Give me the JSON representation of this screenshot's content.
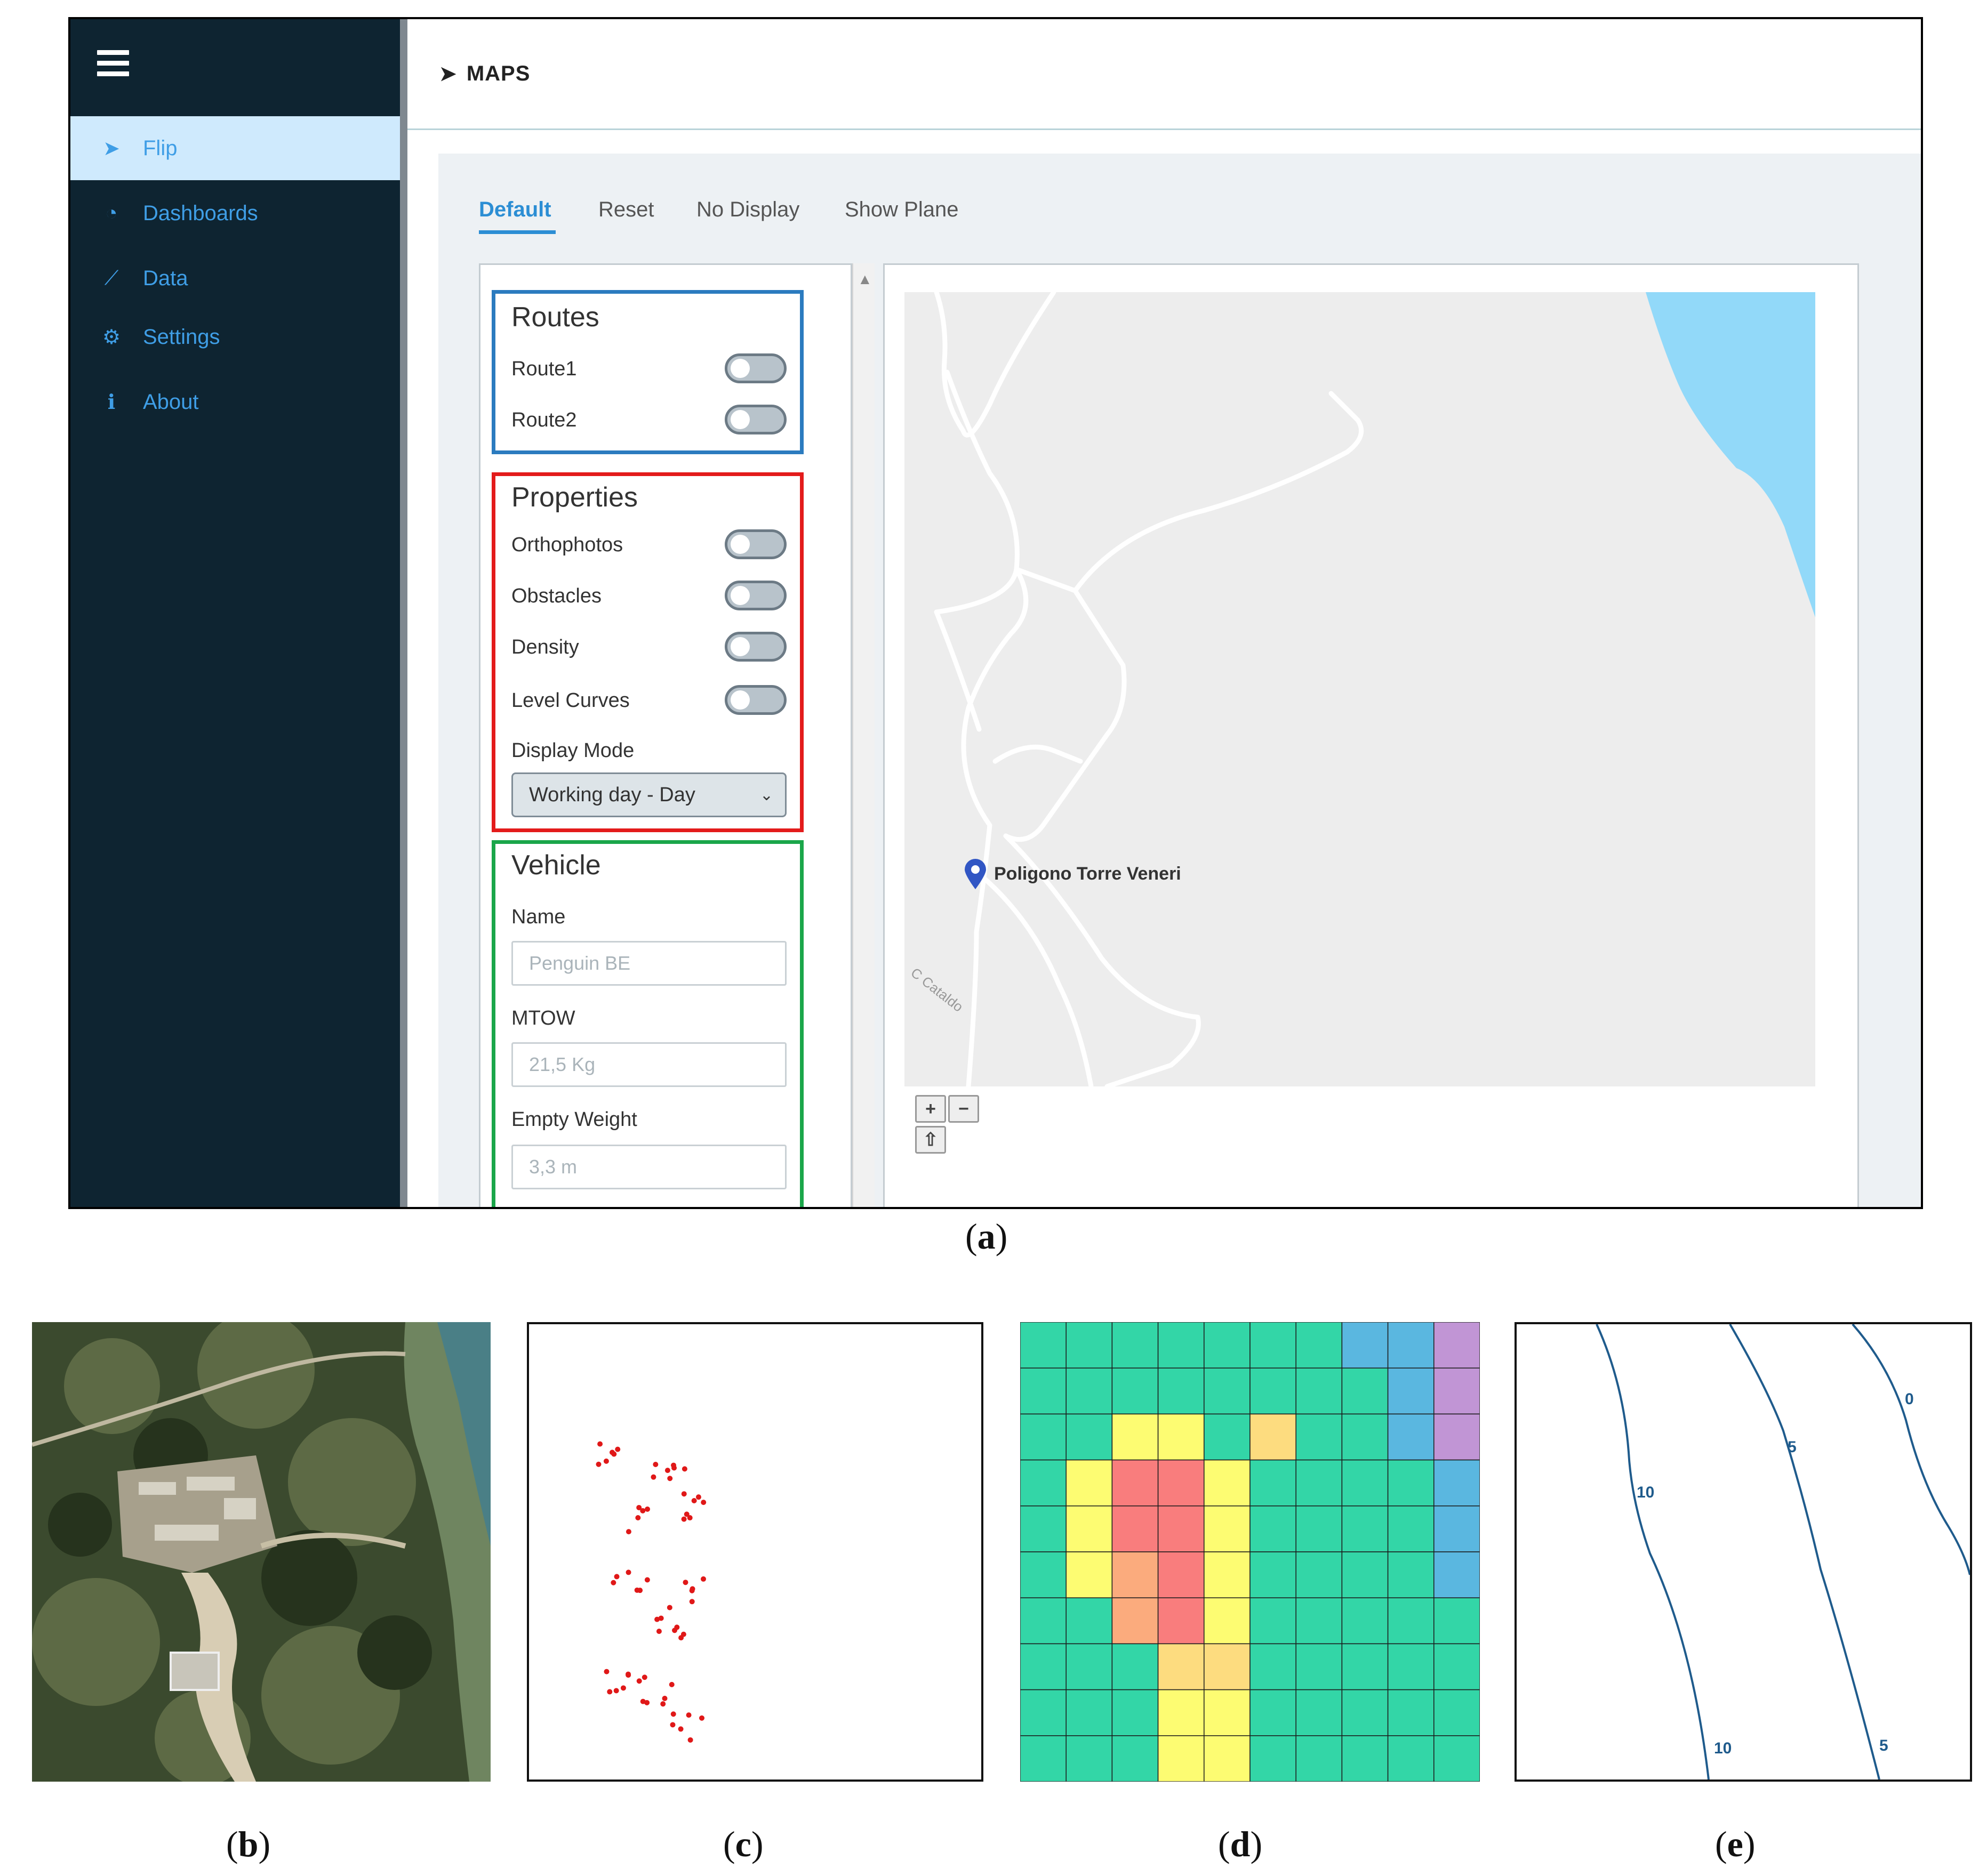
{
  "app": {
    "sidebar": {
      "items": [
        {
          "label": "Flip",
          "icon": "navigation-arrow-icon",
          "active": true
        },
        {
          "label": "Dashboards",
          "icon": "dashboard-gauge-icon",
          "active": false
        },
        {
          "label": "Data",
          "icon": "line-chart-icon",
          "active": false
        },
        {
          "label": "Settings",
          "icon": "gear-icon",
          "active": false
        },
        {
          "label": "About",
          "icon": "info-icon",
          "active": false
        }
      ]
    },
    "header": {
      "title": "MAPS",
      "icon": "navigation-arrow-icon"
    },
    "tabs": [
      {
        "label": "Default",
        "active": true
      },
      {
        "label": "Reset",
        "active": false
      },
      {
        "label": "No Display",
        "active": false
      },
      {
        "label": "Show Plane",
        "active": false
      }
    ],
    "routes": {
      "title": "Routes",
      "border_color": "#2b7bbf",
      "items": [
        {
          "label": "Route1",
          "on": false
        },
        {
          "label": "Route2",
          "on": false
        }
      ]
    },
    "properties": {
      "title": "Properties",
      "border_color": "#e31b1b",
      "items": [
        {
          "label": "Orthophotos",
          "on": false
        },
        {
          "label": "Obstacles",
          "on": false
        },
        {
          "label": "Density",
          "on": false
        },
        {
          "label": "Level Curves",
          "on": false
        }
      ],
      "display_mode_label": "Display Mode",
      "display_mode_value": "Working day - Day"
    },
    "vehicle": {
      "title": "Vehicle",
      "border_color": "#1aa64a",
      "name_label": "Name",
      "name_placeholder": "Penguin BE",
      "mtow_label": "MTOW",
      "mtow_placeholder": "21,5 Kg",
      "empty_weight_label": "Empty Weight",
      "empty_weight_placeholder": "3,3 m"
    },
    "map": {
      "marker_label": "Poligono Torre Veneri",
      "road_label": "C Cataldo",
      "zoom_in": "+",
      "zoom_out": "−",
      "home": "⇧",
      "water_color": "#92d9f9",
      "land_color": "#ededed"
    }
  },
  "captions": {
    "a": "a",
    "b": "b",
    "c": "c",
    "d": "d",
    "e": "e"
  },
  "density_grid": {
    "colors": {
      "G": "#33d6a7",
      "B": "#5ab7e0",
      "P": "#c195d5",
      "Y": "#fdfc72",
      "R": "#f97d7d",
      "O": "#fbab7d",
      "L": "#fddc7f"
    },
    "rows": [
      "GGGGGGGBBP",
      "GGGGGGGGBP",
      "GGYYGLGGBP",
      "GYRRYGGGGB",
      "GYRRYGGGGB",
      "GYORYGGGGB",
      "GGORYGGGGG",
      "GGGLLGGGGG",
      "GGGYYGGGGG",
      "GGGYYGGGGG"
    ]
  },
  "contours": {
    "labels": [
      "10",
      "5",
      "0",
      "10",
      "5"
    ],
    "color": "#1f5b8c"
  }
}
